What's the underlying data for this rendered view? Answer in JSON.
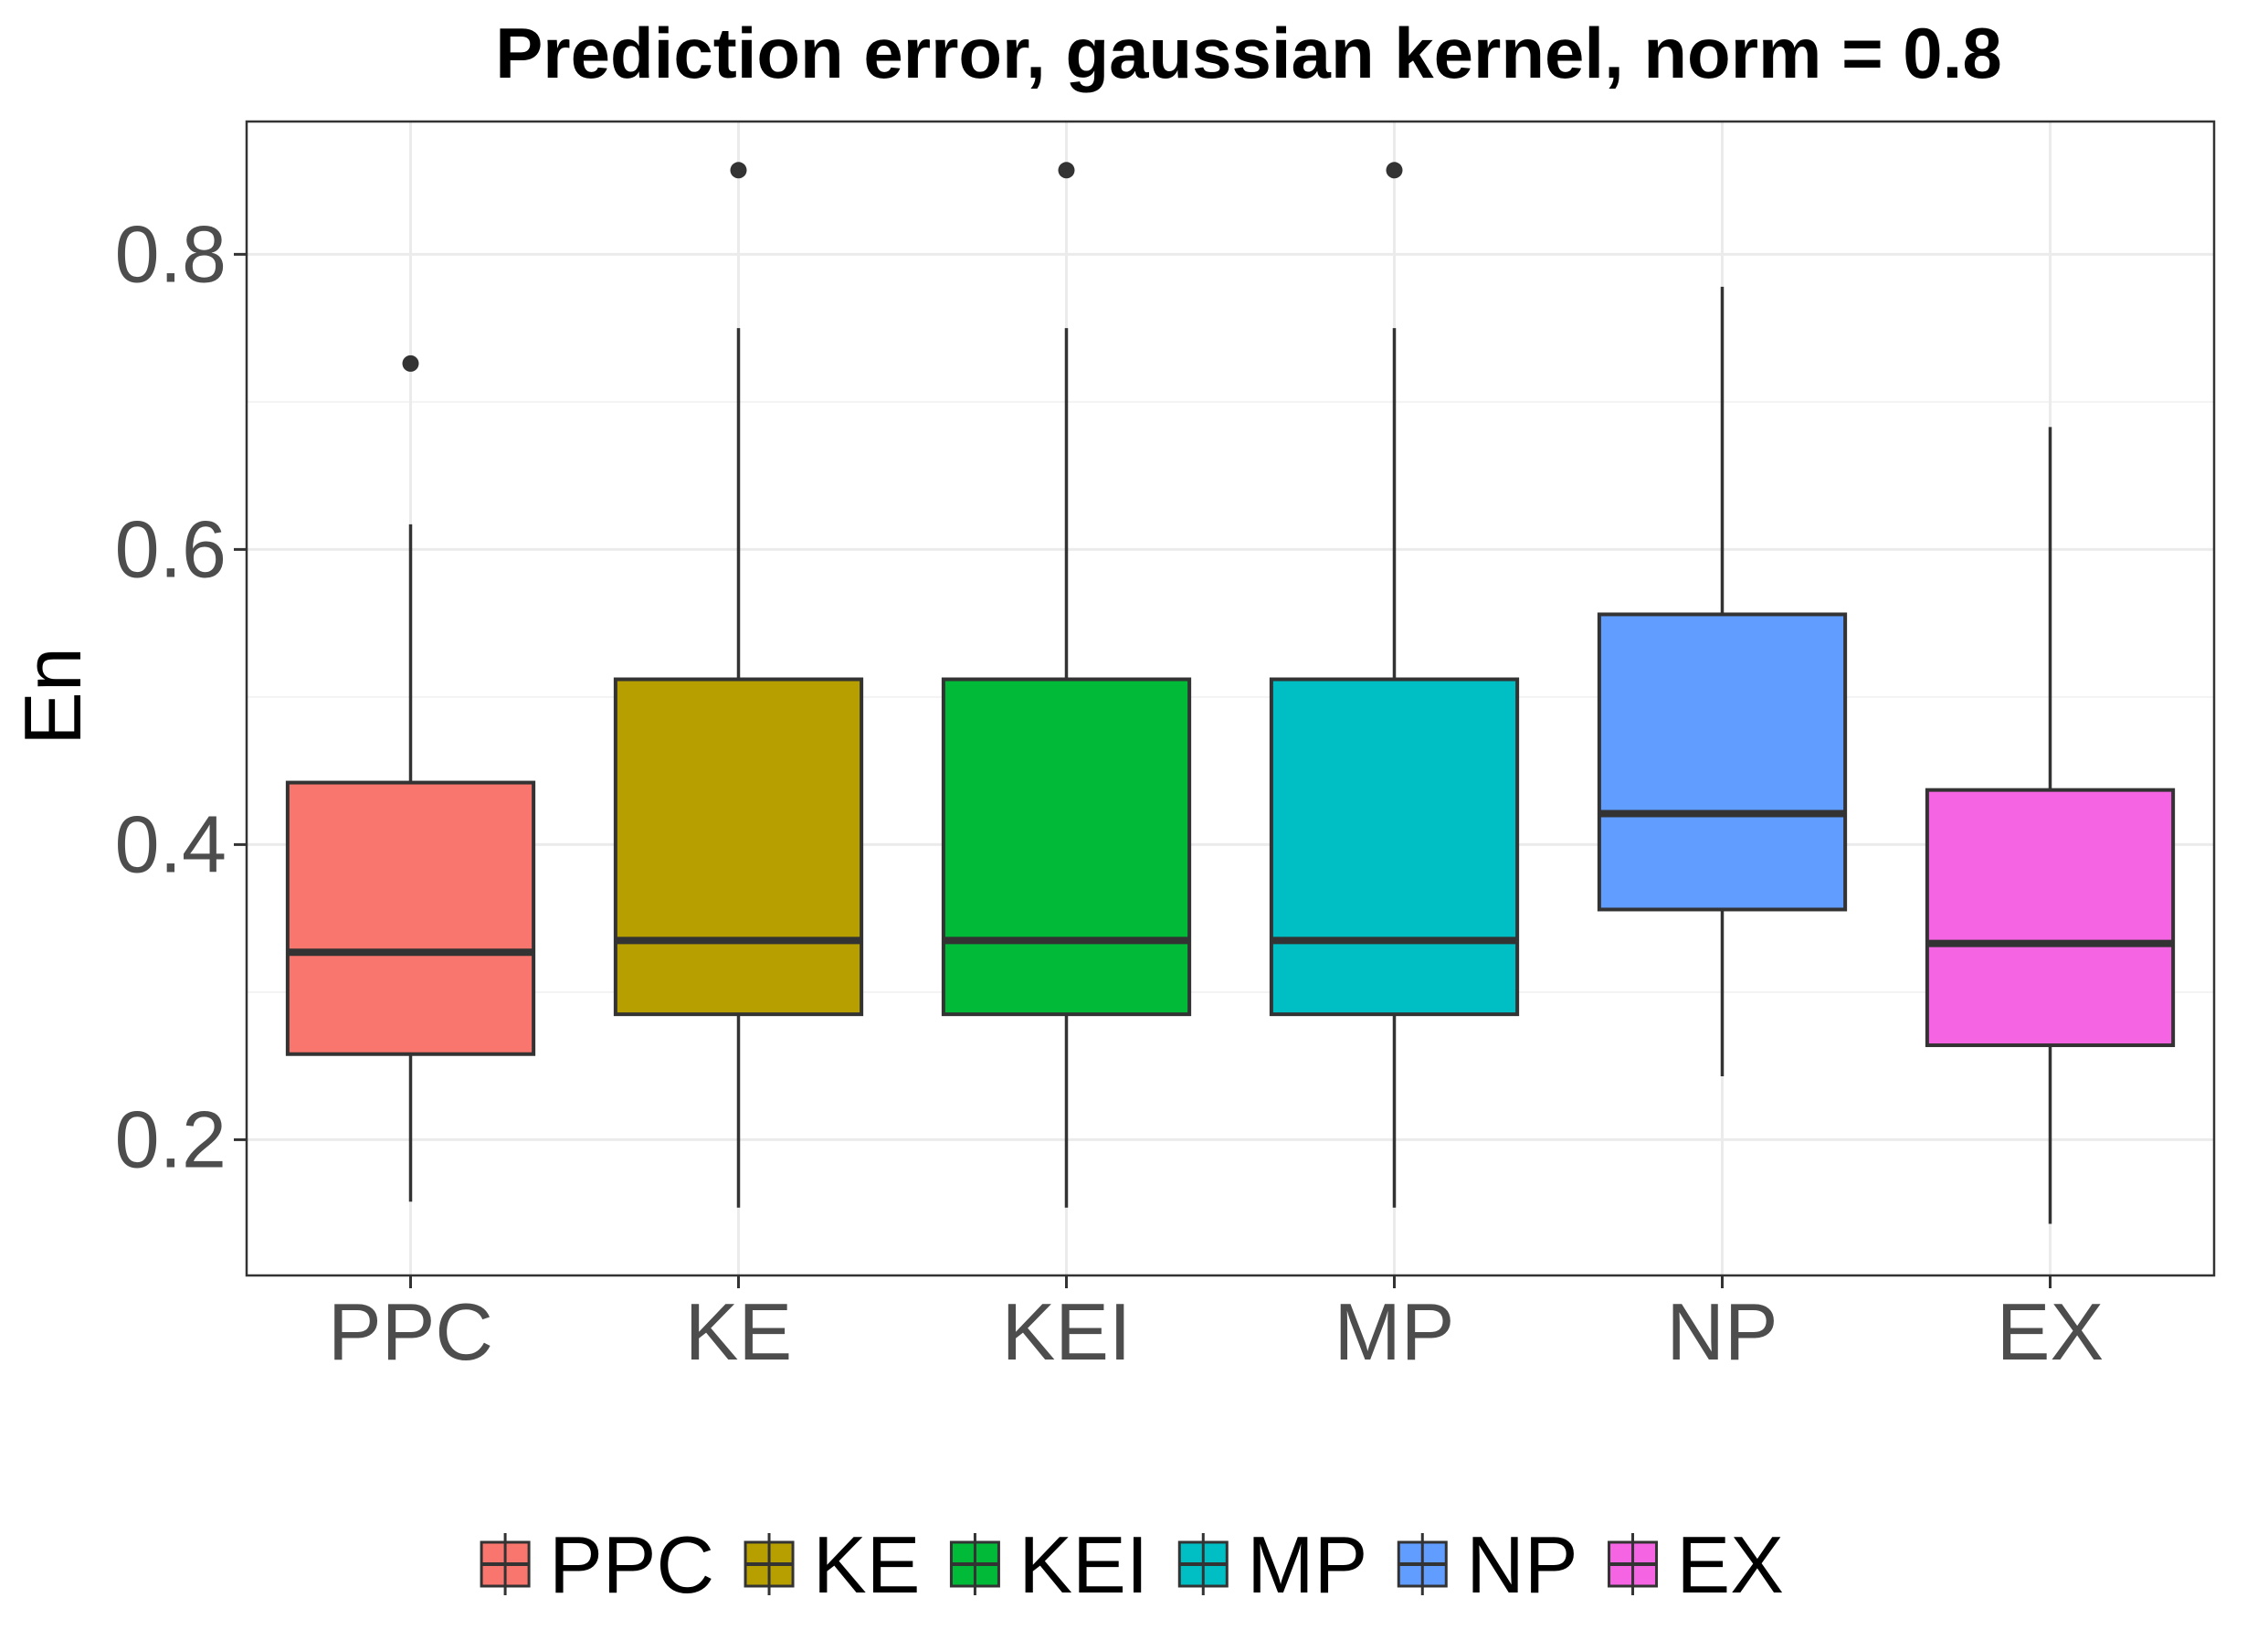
{
  "chart_data": {
    "type": "boxplot",
    "title": "Prediction error, gaussian kernel, norm = 0.8",
    "xlabel": "",
    "ylabel": "En",
    "ylim": [
      0.108,
      0.89
    ],
    "yticks": [
      0.2,
      0.4,
      0.6,
      0.8
    ],
    "ytick_labels": [
      "0.2",
      "0.4",
      "0.6",
      "0.8"
    ],
    "grid": true,
    "legend_position": "bottom",
    "categories": [
      "PPC",
      "KE",
      "KEI",
      "MP",
      "NP",
      "EX"
    ],
    "series": [
      {
        "name": "PPC",
        "color": "#F8766D",
        "min": 0.158,
        "q1": 0.258,
        "median": 0.327,
        "q3": 0.442,
        "max": 0.617,
        "outliers": [
          0.726
        ]
      },
      {
        "name": "KE",
        "color": "#B79F00",
        "min": 0.154,
        "q1": 0.285,
        "median": 0.335,
        "q3": 0.512,
        "max": 0.75,
        "outliers": [
          0.857
        ]
      },
      {
        "name": "KEI",
        "color": "#00BA38",
        "min": 0.154,
        "q1": 0.285,
        "median": 0.335,
        "q3": 0.512,
        "max": 0.75,
        "outliers": [
          0.857
        ]
      },
      {
        "name": "MP",
        "color": "#00BFC4",
        "min": 0.154,
        "q1": 0.285,
        "median": 0.335,
        "q3": 0.512,
        "max": 0.75,
        "outliers": [
          0.857
        ]
      },
      {
        "name": "NP",
        "color": "#619CFF",
        "min": 0.243,
        "q1": 0.356,
        "median": 0.421,
        "q3": 0.556,
        "max": 0.778,
        "outliers": []
      },
      {
        "name": "EX",
        "color": "#F564E3",
        "min": 0.143,
        "q1": 0.264,
        "median": 0.333,
        "q3": 0.437,
        "max": 0.683,
        "outliers": []
      }
    ]
  }
}
